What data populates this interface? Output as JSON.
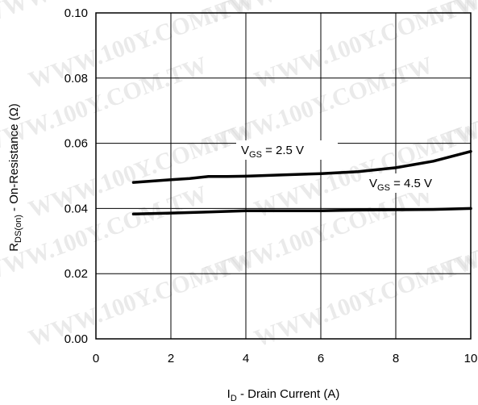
{
  "chart_data": {
    "type": "line",
    "xlabel": {
      "main": "I",
      "sub": "D",
      "rest": " - Drain Current (A)"
    },
    "ylabel": {
      "main": "R",
      "sub": "DS(on)",
      "rest": " - On-Resistance (Ω)"
    },
    "xlim": [
      0,
      10
    ],
    "ylim": [
      0.0,
      0.1
    ],
    "x_ticks": [
      "0",
      "2",
      "4",
      "6",
      "8",
      "10"
    ],
    "y_ticks": [
      "0.00",
      "0.02",
      "0.04",
      "0.06",
      "0.08",
      "0.10"
    ],
    "grid": true,
    "series": [
      {
        "label": {
          "main": "V",
          "sub": "GS",
          "rest": " = 2.5 V"
        },
        "x": [
          1,
          2,
          2.5,
          3,
          3.5,
          4,
          5,
          6,
          7,
          8,
          9,
          10
        ],
        "y": [
          0.048,
          0.0488,
          0.0492,
          0.0498,
          0.0498,
          0.0499,
          0.0503,
          0.0507,
          0.0513,
          0.0525,
          0.0545,
          0.0575
        ]
      },
      {
        "label": {
          "main": "V",
          "sub": "GS",
          "rest": " = 4.5 V"
        },
        "x": [
          1,
          2,
          3,
          4,
          5,
          6,
          7,
          8,
          9,
          10
        ],
        "y": [
          0.0383,
          0.0386,
          0.0389,
          0.0393,
          0.0393,
          0.0393,
          0.0395,
          0.0396,
          0.0397,
          0.04
        ]
      }
    ],
    "watermark": "WWW.100Y.COM.TW"
  }
}
